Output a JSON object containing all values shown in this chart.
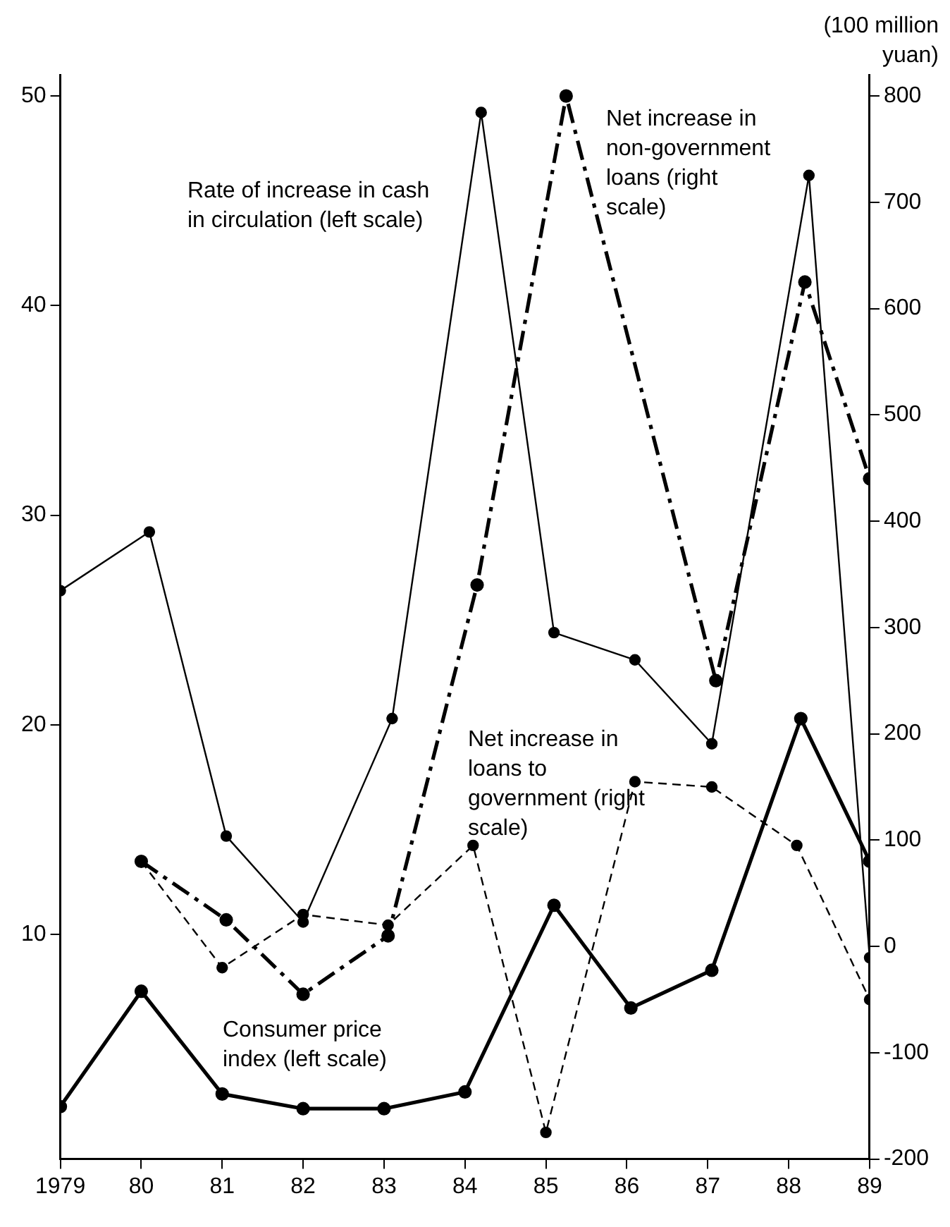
{
  "chart_data": {
    "type": "line",
    "y2label": "(100 million yuan)",
    "legend": false,
    "grid": false,
    "marker": "circle",
    "xlim": [
      1979,
      1989
    ],
    "xticks": [
      {
        "value": 1979,
        "label": "1979"
      },
      {
        "value": 1980,
        "label": "80"
      },
      {
        "value": 1981,
        "label": "81"
      },
      {
        "value": 1982,
        "label": "82"
      },
      {
        "value": 1983,
        "label": "83"
      },
      {
        "value": 1984,
        "label": "84"
      },
      {
        "value": 1985,
        "label": "85"
      },
      {
        "value": 1986,
        "label": "86"
      },
      {
        "value": 1987,
        "label": "87"
      },
      {
        "value": 1988,
        "label": "88"
      },
      {
        "value": 1989,
        "label": "89"
      }
    ],
    "ylim": [
      -0.7,
      51
    ],
    "yticks": [
      10,
      20,
      30,
      40,
      50
    ],
    "y2lim": [
      -200,
      820
    ],
    "y2ticks": [
      -200,
      -100,
      0,
      100,
      200,
      300,
      400,
      500,
      600,
      700,
      800
    ],
    "series": [
      {
        "name": "Rate of increase in cash in circulation (left scale)",
        "color": "#000000",
        "line_style": "solid",
        "x": [
          1979,
          1980.1,
          1981.05,
          1982,
          1983.1,
          1984.2,
          1985.1,
          1986.1,
          1987.05,
          1988.25,
          1989
        ],
        "values": [
          26.4,
          29.2,
          14.7,
          10.6,
          20.3,
          49.2,
          24.4,
          23.1,
          19.1,
          46.2,
          8.9
        ]
      },
      {
        "name": "Consumer price index (left scale)",
        "color": "#000000",
        "line_style": "solid",
        "x": [
          1979,
          1980,
          1981,
          1982,
          1983,
          1984,
          1985.1,
          1986.05,
          1987.05,
          1988.15,
          1989.0
        ],
        "values": [
          1.8,
          7.3,
          2.4,
          1.7,
          1.7,
          2.5,
          11.4,
          6.5,
          8.3,
          20.3,
          13.5
        ]
      },
      {
        "name": "Net increase in non-government loans (right scale)",
        "color": "#000000",
        "axis": "y2",
        "line_style": "dashed",
        "x": [
          1980,
          1981.05,
          1982,
          1983.05,
          1984.15,
          1985.25,
          1987.1,
          1988.2,
          1989
        ],
        "values": [
          80,
          25,
          -45,
          10,
          340,
          800,
          250,
          625,
          440
        ]
      },
      {
        "name": "Net increase in loans to government (right scale)",
        "color": "#000000",
        "axis": "y2",
        "line_style": "dashed",
        "x": [
          1980,
          1981,
          1982,
          1983.05,
          1984.1,
          1985,
          1986.1,
          1987.05,
          1988.1,
          1989
        ],
        "values": [
          80,
          -20,
          30,
          20,
          95,
          -175,
          155,
          150,
          95,
          -50
        ]
      }
    ]
  }
}
